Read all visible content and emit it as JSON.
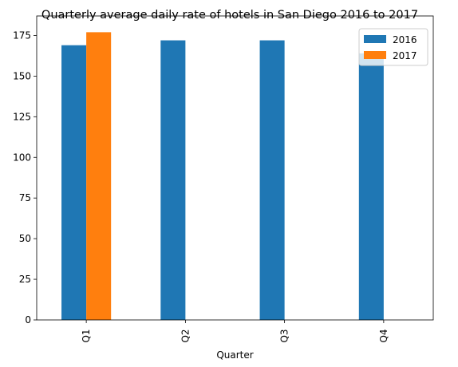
{
  "chart_data": {
    "type": "bar",
    "title": "Quarterly average daily rate of hotels in San Diego 2016 to 2017",
    "xlabel": "Quarter",
    "ylabel": "",
    "categories": [
      "Q1",
      "Q2",
      "Q3",
      "Q4"
    ],
    "series": [
      {
        "name": "2016",
        "color": "#1f77b4",
        "values": [
          169,
          172,
          172,
          164
        ]
      },
      {
        "name": "2017",
        "color": "#ff7f0e",
        "values": [
          177,
          null,
          null,
          null
        ]
      }
    ],
    "ylim": [
      0,
      187
    ],
    "yticks": [
      0,
      25,
      50,
      75,
      100,
      125,
      150,
      175
    ],
    "grid": false,
    "legend_position": "top-right"
  }
}
